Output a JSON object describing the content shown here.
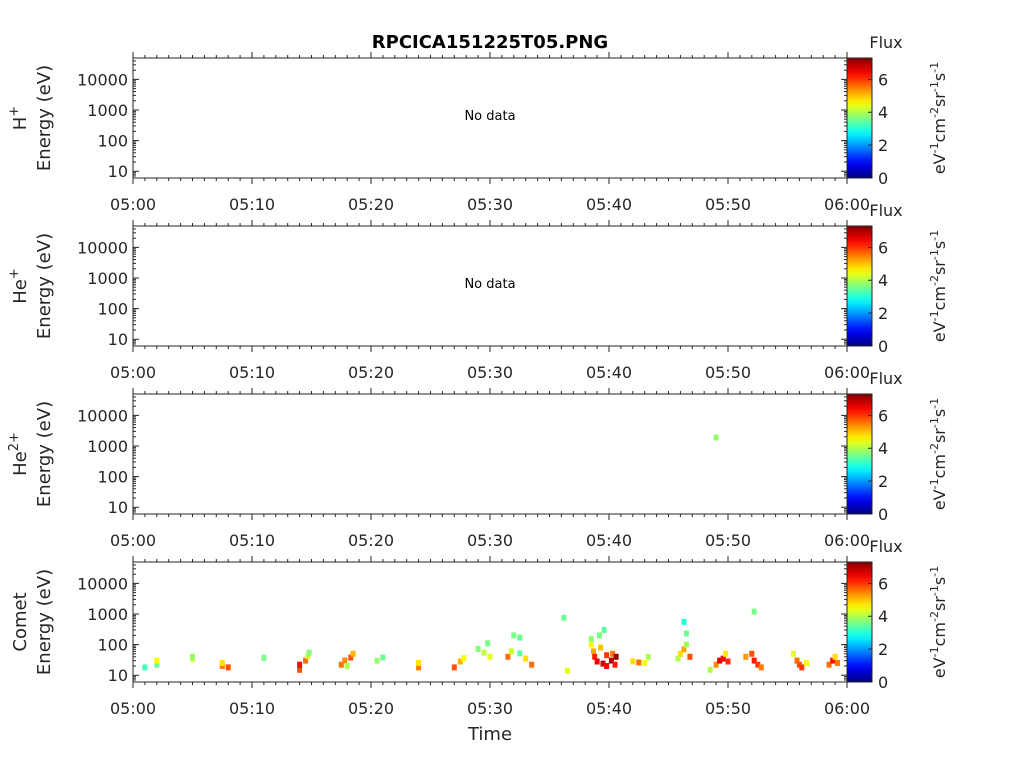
{
  "chart_data": {
    "type": "heatmap",
    "title": "RPCICA151225T05.PNG",
    "xlabel": "Time",
    "x_ticks": [
      "05:00",
      "05:10",
      "05:20",
      "05:30",
      "05:40",
      "05:50",
      "06:00"
    ],
    "xlim_minutes": [
      0,
      60
    ],
    "y_scale": "log",
    "ylim": [
      6,
      50000
    ],
    "y_ticks": [
      10,
      100,
      1000,
      10000
    ],
    "y_tick_labels": [
      "10",
      "100",
      "1000",
      "10000"
    ],
    "colorbar": {
      "title": "Flux",
      "label": "eV-1cm-2sr-1s-1",
      "range": [
        0,
        7.3
      ],
      "ticks": [
        0,
        2,
        4,
        6
      ],
      "tick_labels": [
        "0",
        "2",
        "4",
        "6"
      ],
      "colormap": "jet"
    },
    "panels": [
      {
        "species": "H",
        "species_sup": "+",
        "ylabel": "Energy (eV)",
        "no_data": "No data",
        "points": []
      },
      {
        "species": "He",
        "species_sup": "+",
        "ylabel": "Energy (eV)",
        "no_data": "No data",
        "points": []
      },
      {
        "species": "He",
        "species_sup": "2+",
        "ylabel": "Energy (eV)",
        "no_data": "",
        "points": [
          [
            49.0,
            1900,
            3.8
          ]
        ]
      },
      {
        "species": "Comet",
        "species_sup": "",
        "ylabel": "Energy (eV)",
        "no_data": "",
        "points": [
          [
            1.0,
            18,
            3.2
          ],
          [
            2.0,
            22,
            3.5
          ],
          [
            2.0,
            30,
            4.6
          ],
          [
            5.0,
            35,
            4.4
          ],
          [
            5.0,
            40,
            3.8
          ],
          [
            7.5,
            20,
            5.5
          ],
          [
            7.5,
            25,
            4.8
          ],
          [
            8.0,
            18,
            5.8
          ],
          [
            11.0,
            37,
            3.6
          ],
          [
            14.0,
            15,
            5.8
          ],
          [
            14.0,
            22,
            6.3
          ],
          [
            14.5,
            30,
            5.6
          ],
          [
            14.7,
            42,
            4.2
          ],
          [
            14.8,
            55,
            3.7
          ],
          [
            17.5,
            22,
            5.6
          ],
          [
            17.8,
            30,
            5.4
          ],
          [
            18.3,
            38,
            5.8
          ],
          [
            18.5,
            50,
            5.1
          ],
          [
            18.0,
            20,
            4.0
          ],
          [
            20.5,
            30,
            3.8
          ],
          [
            21.0,
            38,
            3.5
          ],
          [
            24.0,
            18,
            5.5
          ],
          [
            24.0,
            25,
            4.8
          ],
          [
            27.0,
            18,
            5.8
          ],
          [
            27.5,
            28,
            5.1
          ],
          [
            27.8,
            36,
            4.5
          ],
          [
            29.0,
            72,
            3.7
          ],
          [
            29.5,
            55,
            4.1
          ],
          [
            30.0,
            40,
            4.4
          ],
          [
            29.8,
            110,
            3.6
          ],
          [
            31.5,
            40,
            5.6
          ],
          [
            31.8,
            60,
            4.2
          ],
          [
            32.0,
            200,
            3.6
          ],
          [
            32.5,
            170,
            3.5
          ],
          [
            32.5,
            52,
            3.4
          ],
          [
            33.0,
            35,
            4.8
          ],
          [
            33.5,
            22,
            5.6
          ],
          [
            36.5,
            14,
            4.4
          ],
          [
            36.2,
            750,
            3.5
          ],
          [
            38.5,
            100,
            4.6
          ],
          [
            38.5,
            150,
            3.8
          ],
          [
            38.7,
            60,
            5.2
          ],
          [
            38.8,
            40,
            6.2
          ],
          [
            39.0,
            28,
            6.5
          ],
          [
            39.2,
            200,
            3.6
          ],
          [
            39.3,
            80,
            5.0
          ],
          [
            39.5,
            24,
            6.8
          ],
          [
            39.6,
            300,
            3.4
          ],
          [
            39.8,
            20,
            6.4
          ],
          [
            39.8,
            45,
            6.0
          ],
          [
            40.2,
            30,
            6.9
          ],
          [
            40.3,
            50,
            5.5
          ],
          [
            40.5,
            22,
            6.2
          ],
          [
            40.6,
            40,
            7.1
          ],
          [
            42.0,
            28,
            4.8
          ],
          [
            42.5,
            26,
            5.6
          ],
          [
            43.0,
            25,
            4.5
          ],
          [
            43.3,
            40,
            4.0
          ],
          [
            45.8,
            35,
            4.0
          ],
          [
            46.0,
            50,
            4.8
          ],
          [
            46.3,
            70,
            5.2
          ],
          [
            46.5,
            100,
            3.9
          ],
          [
            46.8,
            40,
            5.8
          ],
          [
            46.3,
            550,
            3.0
          ],
          [
            46.5,
            230,
            3.5
          ],
          [
            48.5,
            15,
            4.0
          ],
          [
            49.0,
            22,
            5.4
          ],
          [
            49.3,
            30,
            6.7
          ],
          [
            49.6,
            35,
            6.3
          ],
          [
            49.8,
            50,
            4.7
          ],
          [
            50.0,
            28,
            6.1
          ],
          [
            51.5,
            40,
            5.3
          ],
          [
            52.0,
            50,
            5.8
          ],
          [
            52.2,
            30,
            6.2
          ],
          [
            52.5,
            22,
            6.0
          ],
          [
            52.8,
            18,
            5.5
          ],
          [
            52.2,
            1200,
            3.6
          ],
          [
            55.5,
            50,
            4.4
          ],
          [
            55.8,
            30,
            5.6
          ],
          [
            56.0,
            22,
            5.8
          ],
          [
            56.2,
            18,
            6.0
          ],
          [
            56.6,
            25,
            4.6
          ],
          [
            58.5,
            22,
            5.6
          ],
          [
            58.8,
            30,
            6.3
          ],
          [
            59.0,
            40,
            4.8
          ],
          [
            59.2,
            25,
            5.5
          ]
        ]
      }
    ]
  }
}
